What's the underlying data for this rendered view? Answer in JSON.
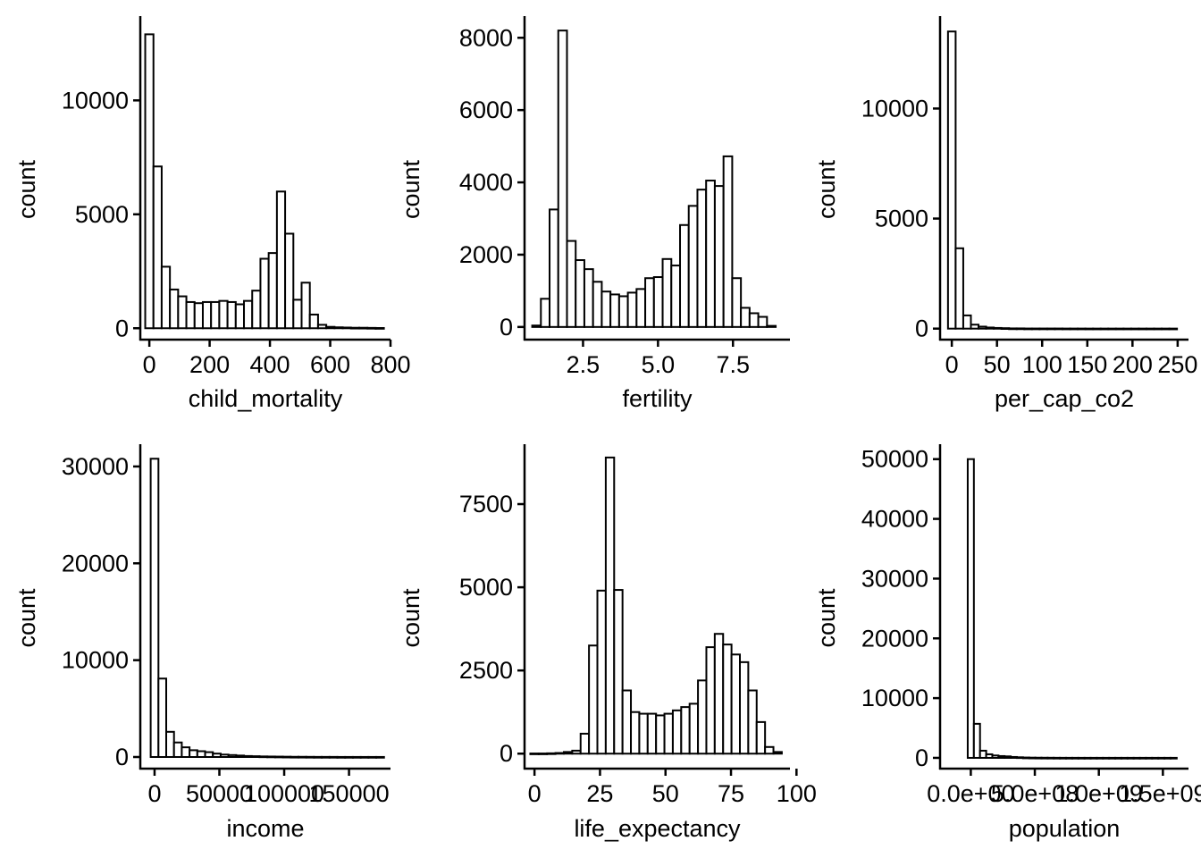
{
  "chart_data": [
    {
      "type": "bar",
      "xlabel": "child_mortality",
      "ylabel": "count",
      "xlim": [
        -30,
        800
      ],
      "ylim": [
        -500,
        13700
      ],
      "bin_width": 27.3,
      "x_ticks": [
        0,
        200,
        400,
        600,
        800
      ],
      "x_tick_labels": [
        "0",
        "200",
        "400",
        "600",
        "800"
      ],
      "y_ticks": [
        0,
        5000,
        10000
      ],
      "y_tick_labels": [
        "0",
        "5000",
        "10000"
      ],
      "x": [
        0,
        27.3,
        54.6,
        81.9,
        109.2,
        136.5,
        163.8,
        191.1,
        218.4,
        245.7,
        273.0,
        300.3,
        327.6,
        354.9,
        382.2,
        409.5,
        436.8,
        464.1,
        491.4,
        518.7,
        546.0,
        573.3,
        600.6,
        627.9,
        655.2,
        682.5,
        709.8,
        737.1,
        764.4
      ],
      "values": [
        12900,
        7100,
        2700,
        1700,
        1400,
        1150,
        1100,
        1150,
        1150,
        1200,
        1150,
        1050,
        1200,
        1650,
        3050,
        3300,
        6000,
        4150,
        1250,
        2000,
        600,
        150,
        60,
        40,
        30,
        20,
        20,
        15,
        10
      ]
    },
    {
      "type": "bar",
      "xlabel": "fertility",
      "ylabel": "count",
      "xlim": [
        0.55,
        9.4
      ],
      "ylim": [
        -350,
        8600
      ],
      "bin_width": 0.29,
      "x_ticks": [
        2.5,
        5.0,
        7.5
      ],
      "x_tick_labels": [
        "2.5",
        "5.0",
        "7.5"
      ],
      "y_ticks": [
        0,
        2000,
        4000,
        6000,
        8000
      ],
      "y_tick_labels": [
        "0",
        "2000",
        "4000",
        "6000",
        "8000"
      ],
      "x": [
        0.95,
        1.24,
        1.53,
        1.82,
        2.11,
        2.4,
        2.69,
        2.98,
        3.27,
        3.56,
        3.85,
        4.14,
        4.43,
        4.72,
        5.01,
        5.3,
        5.59,
        5.88,
        6.17,
        6.46,
        6.75,
        7.04,
        7.33,
        7.62,
        7.91,
        8.2,
        8.49,
        8.78
      ],
      "values": [
        40,
        780,
        3250,
        8200,
        2380,
        1850,
        1600,
        1250,
        980,
        900,
        850,
        950,
        1050,
        1350,
        1380,
        1880,
        1700,
        2820,
        3350,
        3800,
        4050,
        3900,
        4720,
        1350,
        530,
        380,
        280,
        30
      ]
    },
    {
      "type": "bar",
      "xlabel": "per_cap_co2",
      "ylabel": "count",
      "xlim": [
        -13,
        262
      ],
      "ylim": [
        -500,
        14200
      ],
      "bin_width": 8.45,
      "x_ticks": [
        0,
        50,
        100,
        150,
        200,
        250
      ],
      "x_tick_labels": [
        "0",
        "50",
        "100",
        "150",
        "200",
        "250"
      ],
      "y_ticks": [
        0,
        5000,
        10000
      ],
      "y_tick_labels": [
        "0",
        "5000",
        "10000"
      ],
      "x": [
        0,
        8.45,
        16.9,
        25.35,
        33.8,
        42.25,
        50.7,
        59.15,
        67.6,
        76.05,
        84.5,
        92.95,
        101.4,
        109.85,
        118.3,
        126.75,
        135.2,
        143.65,
        152.1,
        160.55,
        169.0,
        177.45,
        185.9,
        194.35,
        202.8,
        211.25,
        219.7,
        228.15,
        236.6,
        245.05
      ],
      "values": [
        13500,
        3650,
        600,
        180,
        90,
        50,
        30,
        20,
        10,
        10,
        5,
        5,
        5,
        5,
        5,
        3,
        3,
        3,
        2,
        2,
        2,
        2,
        2,
        2,
        2,
        2,
        2,
        2,
        2,
        2
      ]
    },
    {
      "type": "bar",
      "xlabel": "income",
      "ylabel": "count",
      "xlim": [
        -11000,
        182000
      ],
      "ylim": [
        -1200,
        32300
      ],
      "bin_width": 6000,
      "x_ticks": [
        0,
        50000,
        100000,
        150000
      ],
      "x_tick_labels": [
        "0",
        "50000",
        "100000",
        "150000"
      ],
      "y_ticks": [
        0,
        10000,
        20000,
        30000
      ],
      "y_tick_labels": [
        "0",
        "10000",
        "20000",
        "30000"
      ],
      "x": [
        0,
        6000,
        12000,
        18000,
        24000,
        30000,
        36000,
        42000,
        48000,
        54000,
        60000,
        66000,
        72000,
        78000,
        84000,
        90000,
        96000,
        102000,
        108000,
        114000,
        120000,
        126000,
        132000,
        138000,
        144000,
        150000,
        156000,
        162000,
        168000,
        174000
      ],
      "values": [
        30800,
        8100,
        2600,
        1500,
        1000,
        700,
        600,
        500,
        350,
        250,
        200,
        150,
        100,
        80,
        60,
        50,
        40,
        30,
        20,
        20,
        15,
        10,
        10,
        10,
        5,
        5,
        5,
        5,
        5,
        5
      ]
    },
    {
      "type": "bar",
      "xlabel": "life_expectancy",
      "ylabel": "count",
      "xlim": [
        -3.8,
        97.5
      ],
      "ylim": [
        -450,
        9300
      ],
      "bin_width": 3.2,
      "x_ticks": [
        0,
        25,
        50,
        75,
        100
      ],
      "x_tick_labels": [
        "0",
        "25",
        "50",
        "75",
        "100"
      ],
      "y_ticks": [
        0,
        2500,
        5000,
        7500
      ],
      "y_tick_labels": [
        "0",
        "2500",
        "5000",
        "7500"
      ],
      "x": [
        0,
        3.2,
        6.4,
        9.6,
        12.8,
        16.0,
        19.2,
        22.4,
        25.6,
        28.8,
        32.0,
        35.2,
        38.4,
        41.6,
        44.8,
        48.0,
        51.2,
        54.4,
        57.6,
        60.8,
        64.0,
        67.2,
        70.4,
        73.6,
        76.8,
        80.0,
        83.2,
        86.4,
        89.6,
        92.8
      ],
      "values": [
        5,
        5,
        10,
        20,
        50,
        90,
        600,
        3250,
        4900,
        8900,
        4920,
        1900,
        1250,
        1200,
        1200,
        1150,
        1200,
        1300,
        1400,
        1500,
        2200,
        3200,
        3600,
        3280,
        2980,
        2750,
        1900,
        950,
        200,
        50
      ]
    },
    {
      "type": "bar",
      "xlabel": "population",
      "ylabel": "count",
      "xlim": [
        -240000000,
        1700000000
      ],
      "ylim": [
        -1800,
        52500
      ],
      "bin_width": 48000000,
      "x_ticks": [
        0,
        500000000,
        1000000000,
        1500000000
      ],
      "x_tick_labels": [
        "0.0e+00",
        "5.0e+08",
        "1.0e+09",
        "1.5e+09"
      ],
      "y_ticks": [
        0,
        10000,
        20000,
        30000,
        40000,
        50000
      ],
      "y_tick_labels": [
        "0",
        "10000",
        "20000",
        "30000",
        "40000",
        "50000"
      ],
      "x": [
        0,
        48000000,
        96000000,
        144000000,
        192000000,
        240000000,
        288000000,
        336000000,
        384000000,
        432000000,
        480000000,
        528000000,
        576000000,
        624000000,
        672000000,
        720000000,
        768000000,
        816000000,
        864000000,
        912000000,
        960000000,
        1008000000,
        1056000000,
        1104000000,
        1152000000,
        1200000000,
        1248000000,
        1296000000,
        1344000000,
        1392000000,
        1440000000,
        1488000000,
        1536000000,
        1584000000
      ],
      "values": [
        50000,
        5700,
        1200,
        600,
        400,
        300,
        250,
        150,
        100,
        60,
        40,
        30,
        25,
        20,
        15,
        12,
        10,
        10,
        8,
        8,
        8,
        8,
        8,
        8,
        8,
        8,
        8,
        8,
        8,
        8,
        8,
        8,
        8,
        8
      ]
    }
  ]
}
